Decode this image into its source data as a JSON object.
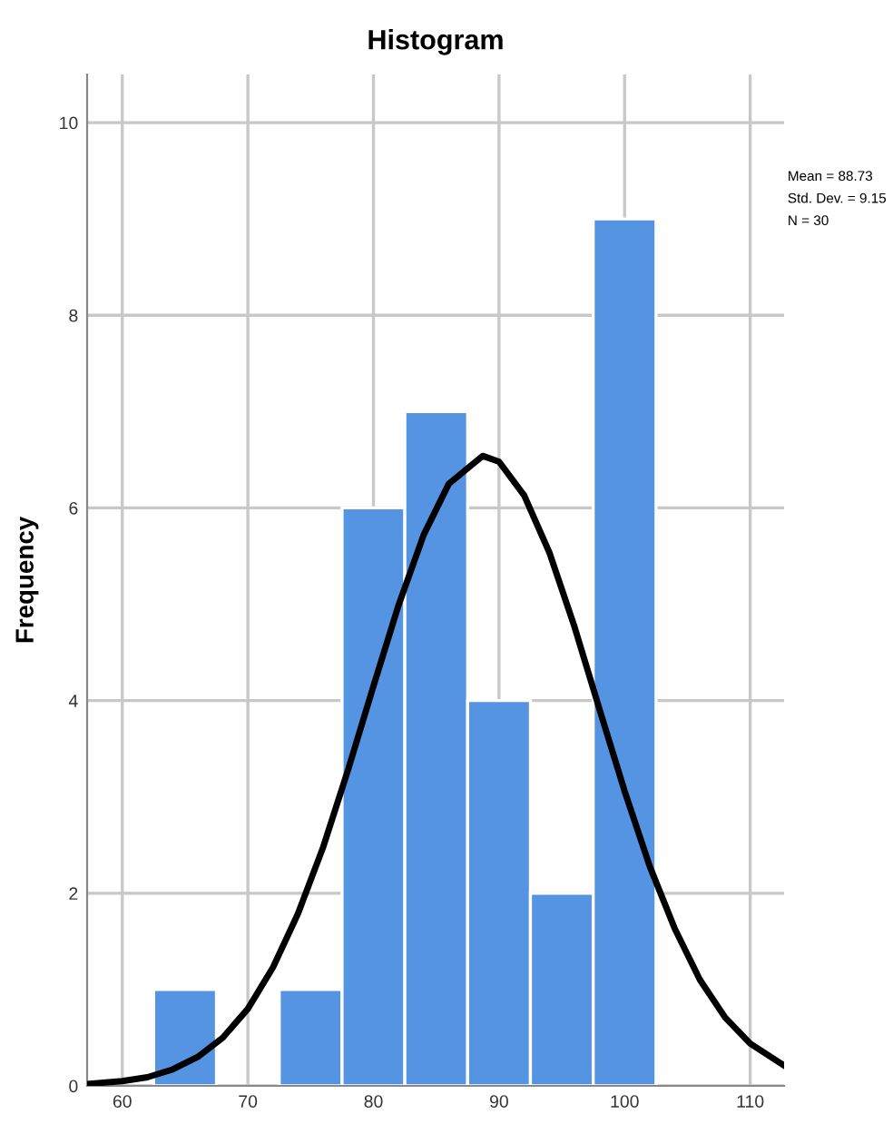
{
  "chart_data": {
    "type": "histogram",
    "title": "Histogram",
    "ylabel": "Frequency",
    "annotations": [
      "Mean = 88.73",
      "Std. Dev. = 9.15",
      "N = 30"
    ],
    "xlim": [
      57.2,
      112.7
    ],
    "xticks": [
      60,
      70,
      80,
      90,
      100,
      110
    ],
    "ylim": [
      0,
      10.5
    ],
    "yticks": [
      0,
      2,
      4,
      6,
      8,
      10
    ],
    "grid": true,
    "series": [
      {
        "color": "#5594e3",
        "bins": [
          62.5,
          67.5,
          72.5,
          77.5,
          82.5,
          87.5,
          92.5,
          97.5,
          102.5
        ],
        "values": [
          1,
          0,
          1,
          6,
          7,
          4,
          2,
          9
        ]
      },
      {
        "type": "line",
        "color": "#000000",
        "x": [
          57.2,
          60,
          62,
          64,
          66,
          68,
          70,
          72,
          74,
          76,
          78,
          80,
          82,
          84,
          86,
          88.7,
          90,
          92,
          94,
          96,
          98,
          100,
          102,
          104,
          106,
          108,
          110,
          112.7
        ],
        "values": [
          0.02,
          0.05,
          0.09,
          0.17,
          0.3,
          0.5,
          0.8,
          1.23,
          1.79,
          2.48,
          3.29,
          4.15,
          4.99,
          5.72,
          6.25,
          6.54,
          6.48,
          6.13,
          5.54,
          4.77,
          3.91,
          3.06,
          2.28,
          1.63,
          1.1,
          0.71,
          0.44,
          0.21
        ]
      }
    ]
  }
}
